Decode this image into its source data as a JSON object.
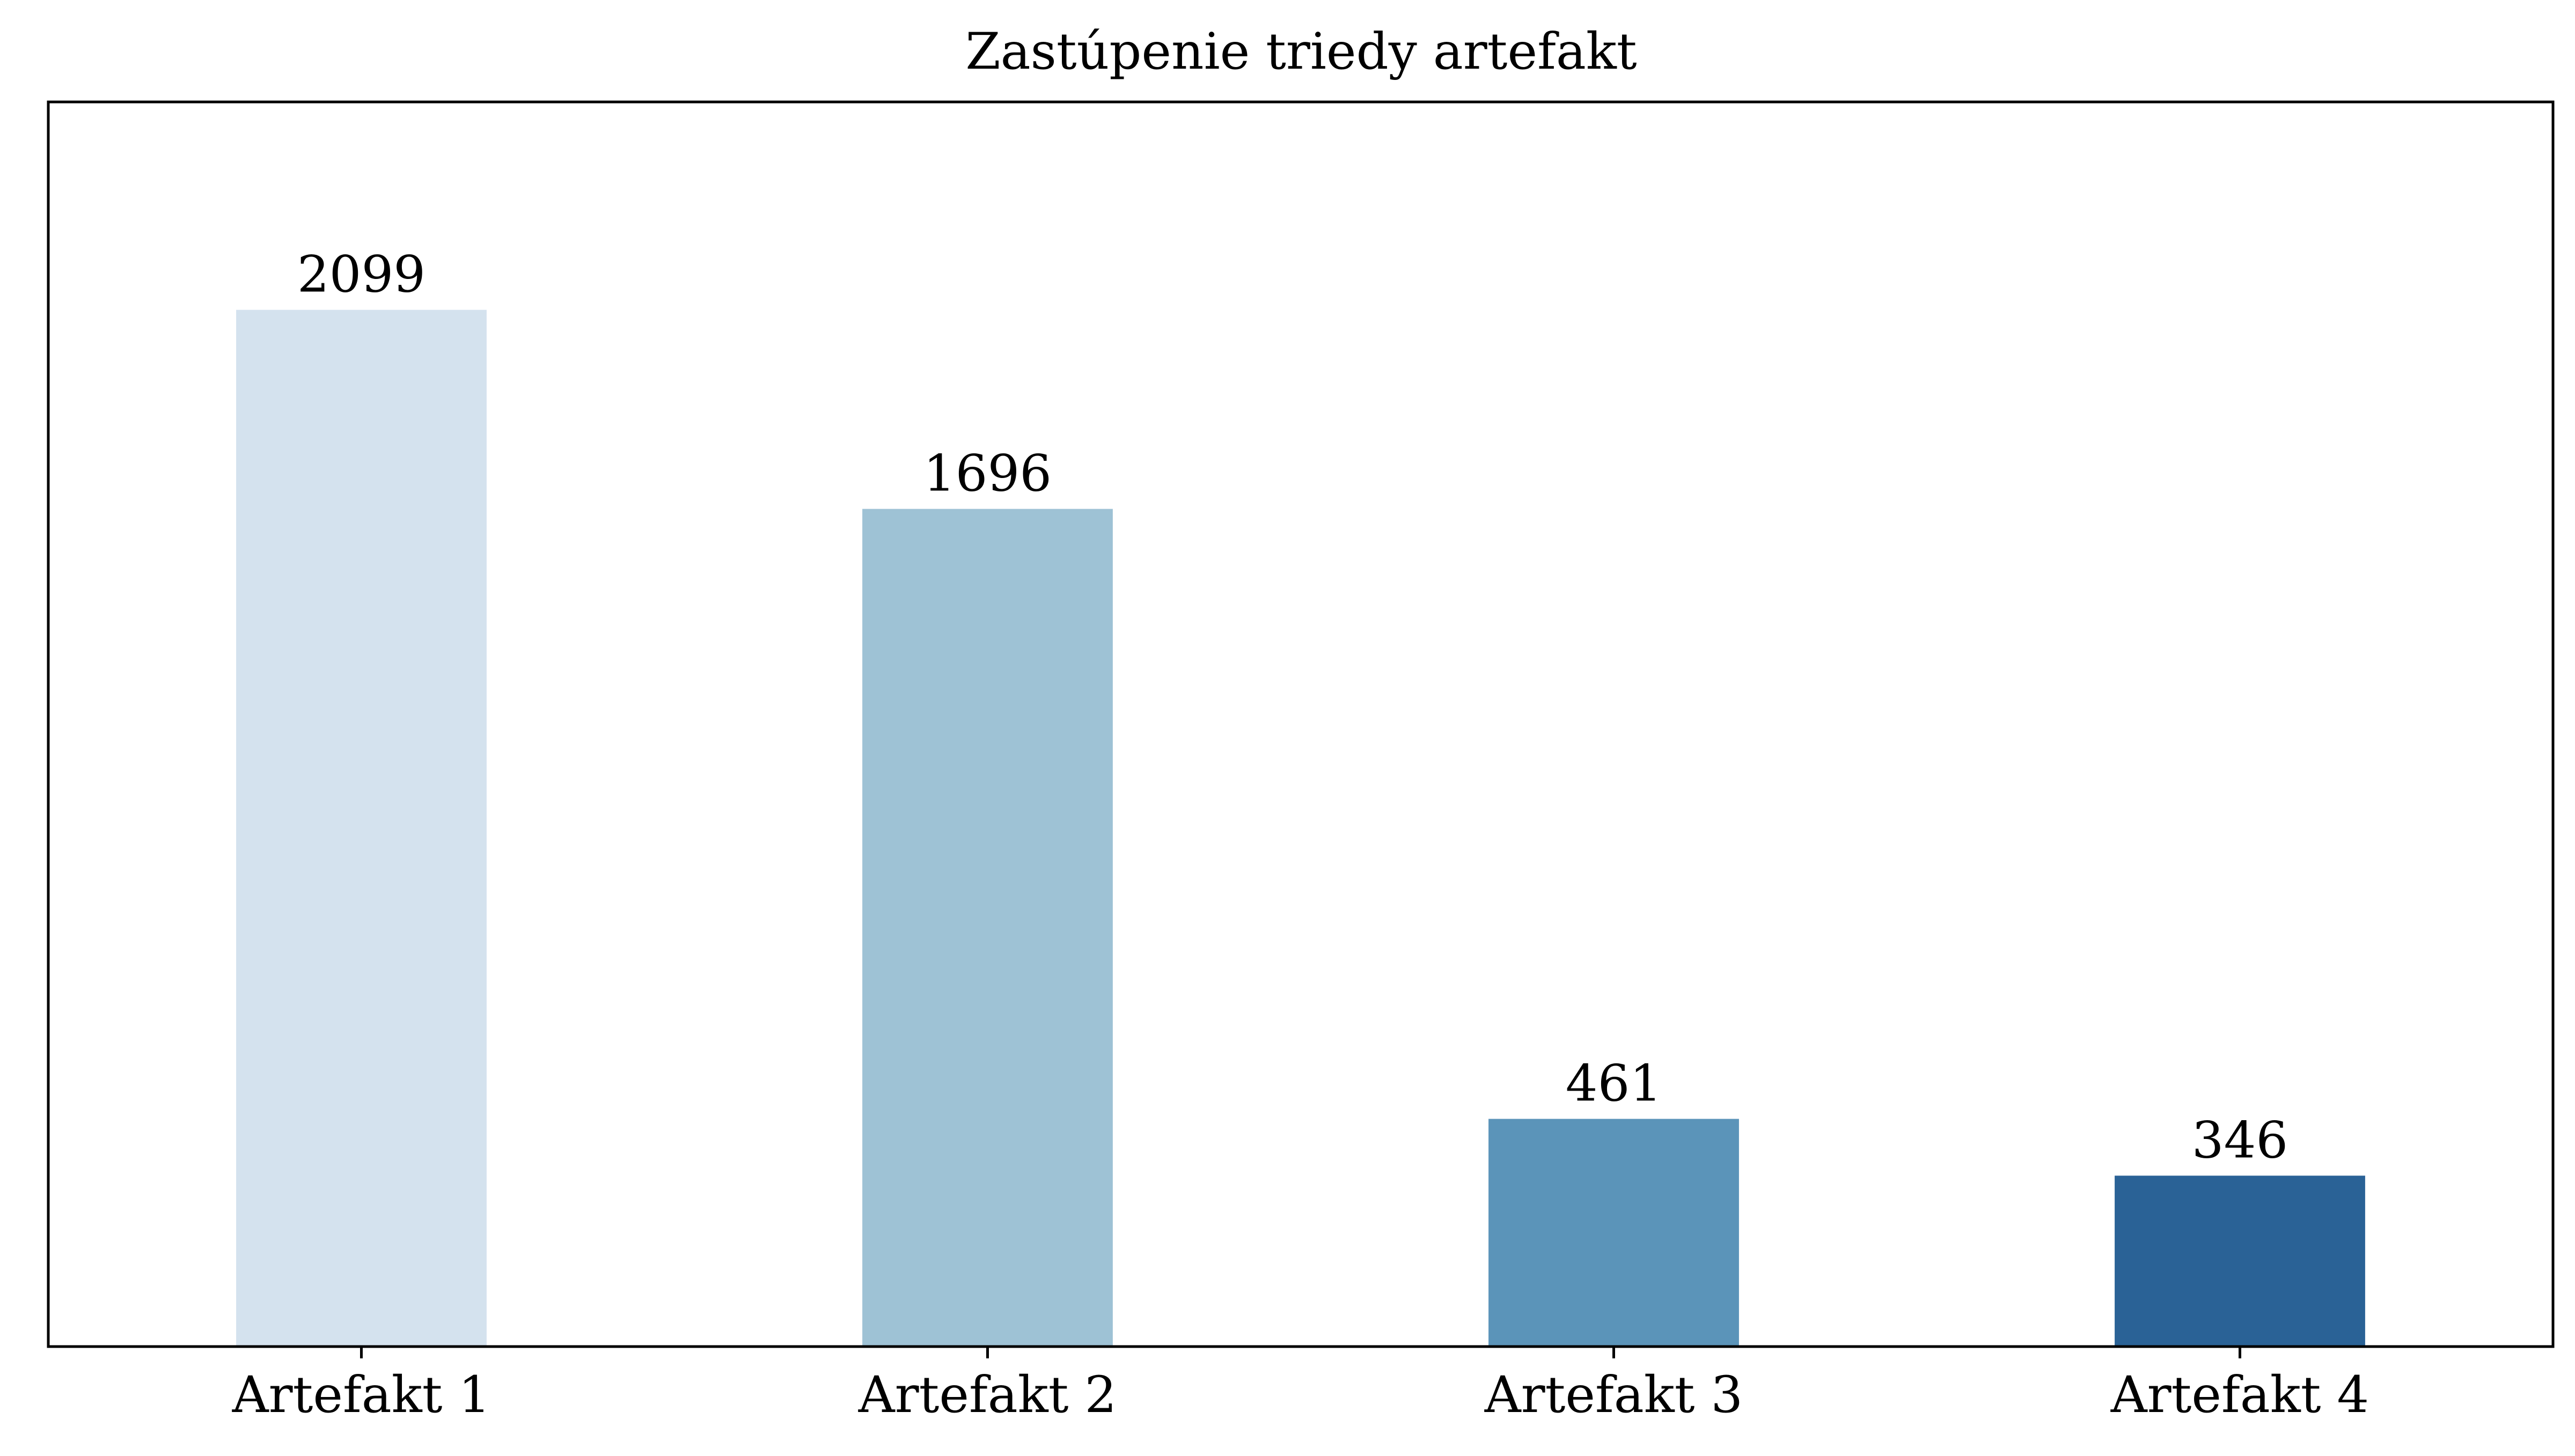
{
  "chart_data": {
    "type": "bar",
    "title": "Zastúpenie triedy artefakt",
    "xlabel": "",
    "ylabel": "",
    "categories": [
      "Artefakt 1",
      "Artefakt 2",
      "Artefakt 3",
      "Artefakt 4"
    ],
    "values": [
      2099,
      1696,
      461,
      346
    ],
    "data_labels": [
      "2099",
      "1696",
      "461",
      "346"
    ],
    "colors": [
      "#d4e2ee",
      "#9ec2d5",
      "#5b94b9",
      "#2a6296"
    ],
    "ylim": [
      0,
      2520
    ],
    "y_ticks_visible": false,
    "grid": false,
    "legend": "none"
  }
}
